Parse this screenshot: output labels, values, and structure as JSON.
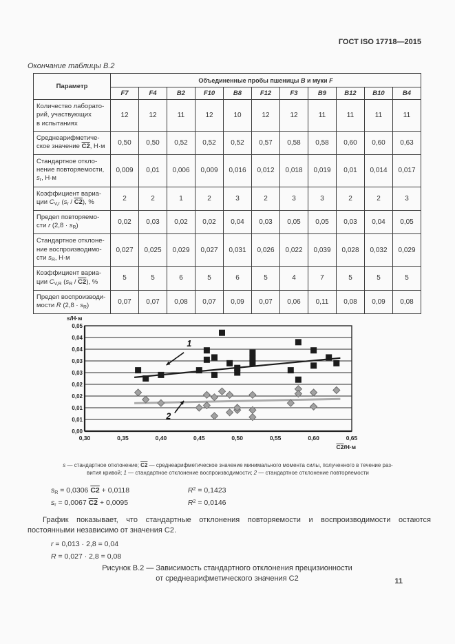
{
  "document": {
    "standard_number": "ГОСТ ISO 17718—2015",
    "table_continuation": "Окончание таблицы В.2",
    "page_number": "11"
  },
  "table": {
    "corner_header": "Параметр",
    "group_header_html": "Объединенные пробы пшеницы <i>B</i> и муки <i>F</i>",
    "columns": [
      "F7",
      "F4",
      "B2",
      "F10",
      "B8",
      "F12",
      "F3",
      "B9",
      "B12",
      "B10",
      "B4"
    ],
    "rows": [
      {
        "size": "h3",
        "label_html": "Количество лаборато-<br>рий, участвующих<br>в испытаниях",
        "values": [
          "12",
          "12",
          "11",
          "12",
          "10",
          "12",
          "12",
          "11",
          "11",
          "11",
          "11"
        ]
      },
      {
        "size": "h2",
        "label_html": "Среднеарифметиче-<br>ское значение <span class='c2'>C2</span>, Н·м",
        "values": [
          "0,50",
          "0,50",
          "0,52",
          "0,52",
          "0,52",
          "0,57",
          "0,58",
          "0,58",
          "0,60",
          "0,60",
          "0,63"
        ]
      },
      {
        "size": "h3",
        "label_html": "Стандартное откло-<br>нение повторяемости,<br><i>s</i><sub>r</sub>, Н·м",
        "values": [
          "0,009",
          "0,01",
          "0,006",
          "0,009",
          "0,016",
          "0,012",
          "0,018",
          "0,019",
          "0,01",
          "0,014",
          "0,017"
        ]
      },
      {
        "size": "h2",
        "label_html": "Коэффициент вариа-<br>ции <i>C</i><sub>V,r</sub> (<i>s</i><sub>r</sub> / <span class='c2'>C2</span>), %",
        "values": [
          "2",
          "2",
          "1",
          "2",
          "3",
          "2",
          "3",
          "3",
          "2",
          "2",
          "3"
        ]
      },
      {
        "size": "h2",
        "label_html": "Предел повторяемо-<br>сти <i>r</i> (2,8 · <i>s</i><sub>R</sub>)",
        "values": [
          "0,02",
          "0,03",
          "0,02",
          "0,02",
          "0,04",
          "0,03",
          "0,05",
          "0,05",
          "0,03",
          "0,04",
          "0,05"
        ]
      },
      {
        "size": "h3",
        "label_html": "Стандартное отклоне-<br>ние воспроизводимо-<br>сти <i>s</i><sub>R</sub>, Н·м",
        "values": [
          "0,027",
          "0,025",
          "0,029",
          "0,027",
          "0,031",
          "0,026",
          "0,022",
          "0,039",
          "0,028",
          "0,032",
          "0,029"
        ]
      },
      {
        "size": "h2",
        "label_html": "Коэффициент вариа-<br>ции <i>C</i><sub>V,R</sub> (<i>s</i><sub>R</sub> / <span class='c2'>C2</span>), %",
        "values": [
          "5",
          "5",
          "6",
          "5",
          "6",
          "5",
          "4",
          "7",
          "5",
          "5",
          "5"
        ]
      },
      {
        "size": "h2",
        "label_html": "Предел воспроизводи-<br>мости <i>R</i> (2,8 · <i>s</i><sub>R</sub>)",
        "values": [
          "0,07",
          "0,07",
          "0,08",
          "0,07",
          "0,09",
          "0,07",
          "0,06",
          "0,11",
          "0,08",
          "0,09",
          "0,08"
        ]
      }
    ]
  },
  "chart_data": {
    "type": "scatter",
    "ylabel_italic": "s",
    "ylabel_rest": "/Н·м",
    "xlabel_overlined": "C2",
    "xlabel_rest": "/Н·м",
    "xlim": [
      0.3,
      0.65
    ],
    "ylim": [
      0,
      0.045
    ],
    "grid": "horizontal",
    "x_tick_values": [
      0.3,
      0.35,
      0.4,
      0.45,
      0.5,
      0.55,
      0.6,
      0.65
    ],
    "x_tick_labels": [
      "0,30",
      "0,35",
      "0,40",
      "0,45",
      "0,50",
      "0,55",
      "0,60",
      "0,65"
    ],
    "y_tick_values": [
      0,
      0.005,
      0.01,
      0.015,
      0.02,
      0.025,
      0.03,
      0.035,
      0.04,
      0.045
    ],
    "y_tick_labels": [
      "0,00",
      "0,01",
      "0,01",
      "0,02",
      "0,02",
      "0,03",
      "0,03",
      "0,04",
      "0,04",
      "0,05"
    ],
    "series": [
      {
        "name": "стандартное отклонение воспроизводимости s_R",
        "curve_label": "1",
        "marker": "square",
        "color": "#1c1c1c",
        "trend_color": "#1c1c1c",
        "trend_width": 2.2,
        "trend": {
          "slope": 0.0306,
          "intercept": 0.0118,
          "r2": 0.1423,
          "x_range": [
            0.365,
            0.635
          ]
        },
        "points": [
          [
            0.37,
            0.026
          ],
          [
            0.38,
            0.0225
          ],
          [
            0.4,
            0.024
          ],
          [
            0.45,
            0.026
          ],
          [
            0.46,
            0.0345
          ],
          [
            0.46,
            0.0305
          ],
          [
            0.47,
            0.0315
          ],
          [
            0.47,
            0.024
          ],
          [
            0.48,
            0.042
          ],
          [
            0.49,
            0.029
          ],
          [
            0.5,
            0.027
          ],
          [
            0.5,
            0.025
          ],
          [
            0.52,
            0.0335
          ],
          [
            0.52,
            0.031
          ],
          [
            0.52,
            0.029
          ],
          [
            0.57,
            0.026
          ],
          [
            0.58,
            0.038
          ],
          [
            0.58,
            0.022
          ],
          [
            0.6,
            0.0345
          ],
          [
            0.6,
            0.028
          ],
          [
            0.62,
            0.0315
          ],
          [
            0.63,
            0.029
          ]
        ]
      },
      {
        "name": "стандартное отклонение повторяемости s_r",
        "curve_label": "2",
        "marker": "diamond",
        "color": "#a2a2a2",
        "trend_color": "#ababab",
        "trend_width": 3,
        "trend": {
          "slope": 0.0067,
          "intercept": 0.0095,
          "r2": 0.0146,
          "x_range": [
            0.365,
            0.635
          ]
        },
        "points": [
          [
            0.37,
            0.0165
          ],
          [
            0.38,
            0.0135
          ],
          [
            0.4,
            0.012
          ],
          [
            0.45,
            0.01
          ],
          [
            0.46,
            0.0155
          ],
          [
            0.46,
            0.011
          ],
          [
            0.47,
            0.0145
          ],
          [
            0.47,
            0.0065
          ],
          [
            0.48,
            0.017
          ],
          [
            0.49,
            0.0155
          ],
          [
            0.49,
            0.008
          ],
          [
            0.5,
            0.009
          ],
          [
            0.5,
            0.01
          ],
          [
            0.52,
            0.0155
          ],
          [
            0.52,
            0.009
          ],
          [
            0.52,
            0.006
          ],
          [
            0.57,
            0.012
          ],
          [
            0.58,
            0.018
          ],
          [
            0.58,
            0.016
          ],
          [
            0.6,
            0.0165
          ],
          [
            0.6,
            0.0105
          ],
          [
            0.63,
            0.0175
          ]
        ]
      }
    ],
    "annotations": [
      {
        "label": "1",
        "tx": 0.437,
        "ty": 0.0362,
        "x1": 0.43,
        "y1": 0.0336,
        "x2": 0.407,
        "y2": 0.0282
      },
      {
        "label": "2",
        "tx": 0.41,
        "ty": 0.0052,
        "x1": 0.418,
        "y1": 0.0078,
        "x2": 0.43,
        "y2": 0.013
      }
    ]
  },
  "figure": {
    "footnote_lines_html": [
      "<i>s</i> — стандартное отклонение; <span class='c2'>C2</span> — среднеарифметическое значение минимального момента силы, полученного в течение раз-",
      "вития кривой; <i>1</i> — стандартное отклонение воспроизводимости; <i>2</i> — стандартное отклонение повторяемости"
    ],
    "equations": [
      {
        "lhs_html": "<i>s</i><sub>R</sub> = 0,0306 <span class='c2'>C2</span> + 0,0118",
        "r2_html": "<i>R</i><sup>2</sup> = 0,1423"
      },
      {
        "lhs_html": "<i>s</i><sub>r</sub> = 0,0067 <span class='c2'>C2</span> + 0,0095",
        "r2_html": "<i>R</i><sup>2</sup> = 0,0146"
      }
    ],
    "paragraph": "График показывает, что стандартные отклонения повторяемости и воспроизводимости остаются постоянными независимо от значения С2.",
    "derived_formulas_html": [
      "<i>r</i> = 0,013 · 2,8 = 0,04",
      "<i>R</i> = 0,027 · 2,8 = 0,08"
    ],
    "caption_lines": [
      "Рисунок В.2 — Зависимость стандартного отклонения прецизионности",
      "от среднеарифметического значения С2"
    ]
  }
}
